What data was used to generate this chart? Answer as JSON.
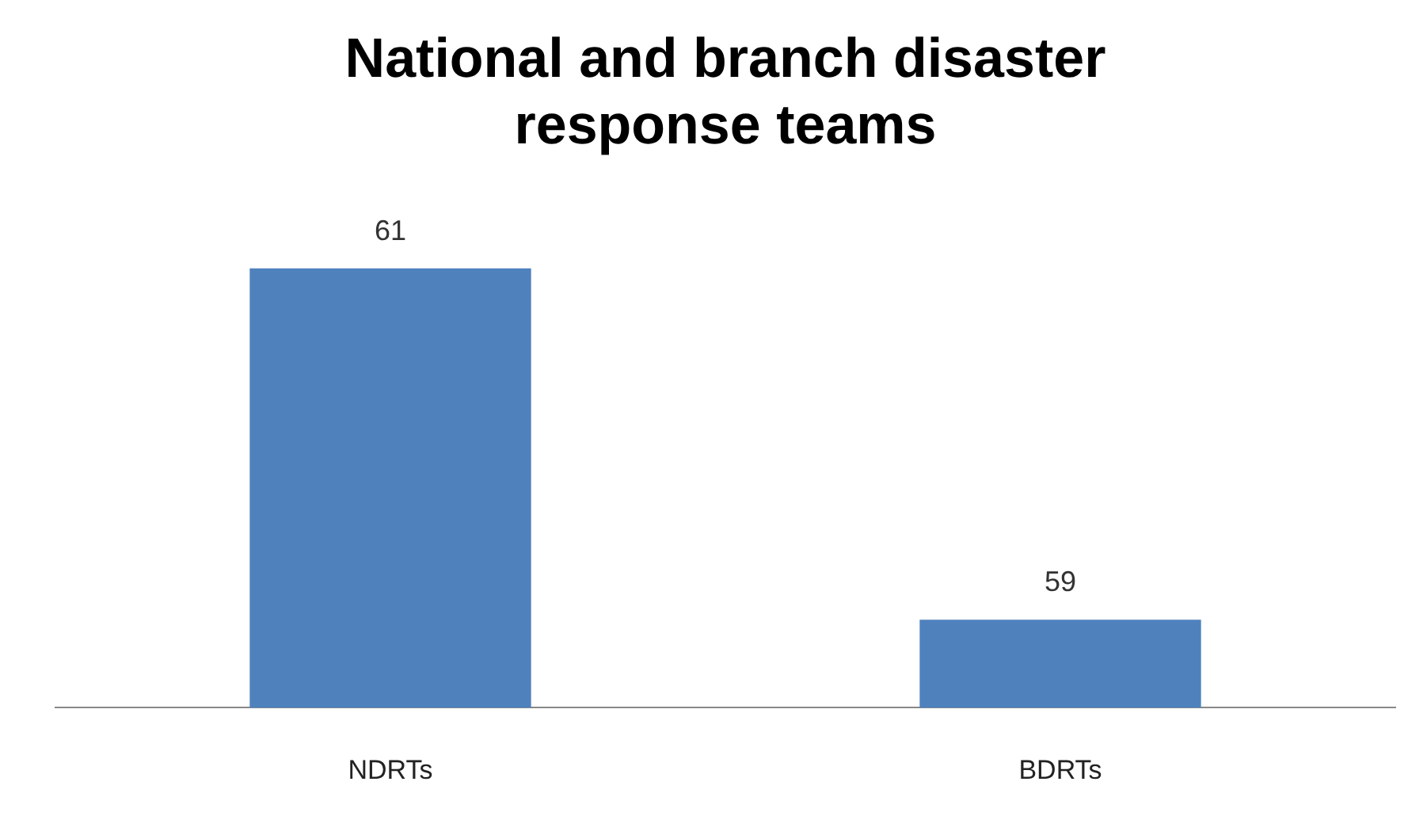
{
  "chart_data": {
    "type": "bar",
    "title": "National and branch disaster response teams",
    "categories": [
      "NDRTs",
      "BDRTs"
    ],
    "values": [
      61,
      59
    ],
    "color": "#4f81bd",
    "tick_labels": "x",
    "data_labels": true,
    "grid": false,
    "legend": false
  }
}
